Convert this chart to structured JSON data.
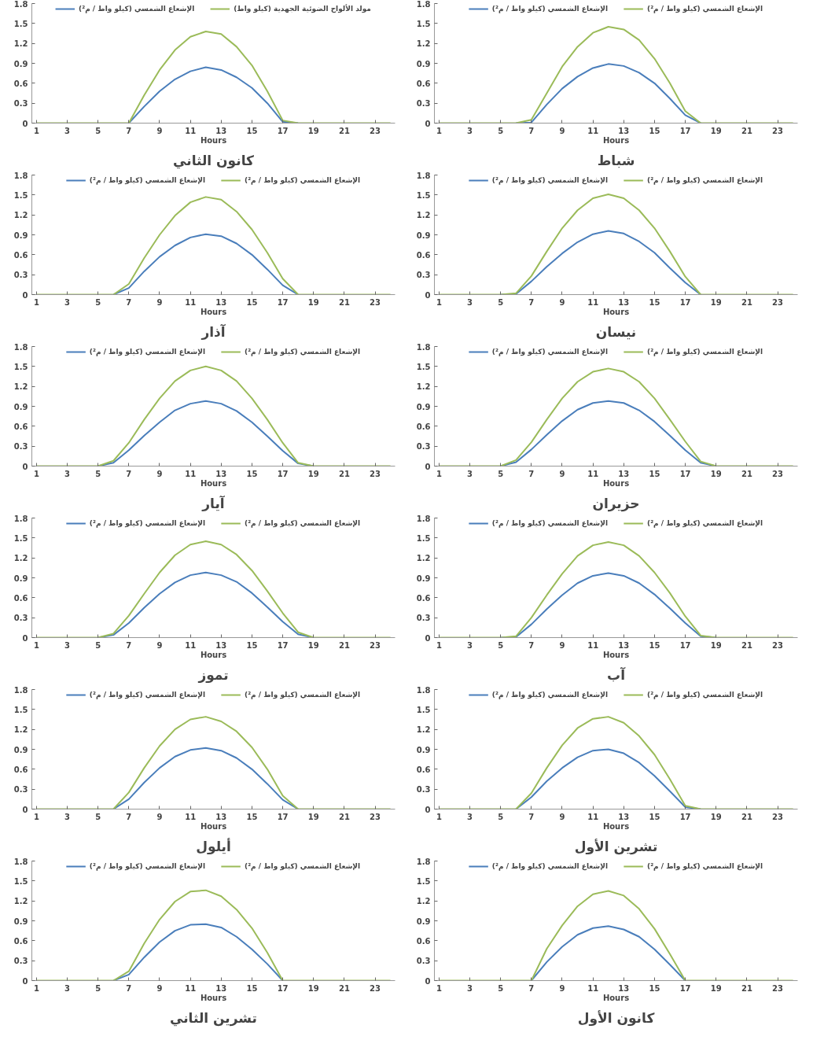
{
  "chart_data": [
    {
      "type": "line",
      "title": "كانون الثاني",
      "xlabel": "Hours",
      "x": [
        1,
        2,
        3,
        4,
        5,
        6,
        7,
        8,
        9,
        10,
        11,
        12,
        13,
        14,
        15,
        16,
        17,
        18,
        19,
        20,
        21,
        22,
        23,
        24
      ],
      "xlim": [
        0.7,
        24.3
      ],
      "xticks": [
        1,
        3,
        5,
        7,
        9,
        11,
        13,
        15,
        17,
        19,
        21,
        23
      ],
      "ylim": [
        0,
        1.8
      ],
      "yticks": [
        0,
        0.3,
        0.6,
        0.9,
        1.2,
        1.5,
        1.8
      ],
      "grid": false,
      "legend": "top",
      "series": [
        {
          "name": "الإشعاع الشمسي (كيلو واط / م²)",
          "color": "#4a7ebb",
          "values": [
            null,
            null,
            null,
            null,
            null,
            null,
            0,
            0.25,
            0.48,
            0.66,
            0.78,
            0.84,
            0.8,
            0.69,
            0.53,
            0.3,
            0.02,
            0,
            null,
            null,
            null,
            null,
            null,
            null
          ]
        },
        {
          "name": "مولد الألواح الضوئية الجهدية (كيلو واط)",
          "color": "#9bbb59",
          "values": [
            0,
            0,
            0,
            0,
            0,
            0,
            0,
            0.42,
            0.8,
            1.1,
            1.3,
            1.38,
            1.34,
            1.15,
            0.87,
            0.48,
            0.04,
            0,
            0,
            0,
            0,
            0,
            0,
            0
          ]
        }
      ]
    },
    {
      "type": "line",
      "title": "شباط",
      "xlabel": "Hours",
      "x": [
        1,
        2,
        3,
        4,
        5,
        6,
        7,
        8,
        9,
        10,
        11,
        12,
        13,
        14,
        15,
        16,
        17,
        18,
        19,
        20,
        21,
        22,
        23,
        24
      ],
      "xlim": [
        0.7,
        24.3
      ],
      "xticks": [
        1,
        3,
        5,
        7,
        9,
        11,
        13,
        15,
        17,
        19,
        21,
        23
      ],
      "ylim": [
        0,
        1.8
      ],
      "yticks": [
        0,
        0.3,
        0.6,
        0.9,
        1.2,
        1.5,
        1.8
      ],
      "grid": false,
      "legend": "top",
      "series": [
        {
          "name": "الإشعاع الشمسي (كيلو واط / م²)",
          "color": "#4a7ebb",
          "values": [
            null,
            null,
            null,
            null,
            null,
            0,
            0.01,
            0.28,
            0.52,
            0.7,
            0.83,
            0.89,
            0.86,
            0.76,
            0.6,
            0.37,
            0.12,
            0,
            null,
            null,
            null,
            null,
            null,
            null
          ]
        },
        {
          "name": "الإشعاع الشمسي (كيلو واط / م²)",
          "color": "#9bbb59",
          "values": [
            0,
            0,
            0,
            0,
            0,
            0,
            0.05,
            0.45,
            0.85,
            1.15,
            1.36,
            1.45,
            1.41,
            1.25,
            0.97,
            0.6,
            0.18,
            0,
            0,
            0,
            0,
            0,
            0,
            0
          ]
        }
      ]
    },
    {
      "type": "line",
      "title": "آذار",
      "xlabel": "Hours",
      "x": [
        1,
        2,
        3,
        4,
        5,
        6,
        7,
        8,
        9,
        10,
        11,
        12,
        13,
        14,
        15,
        16,
        17,
        18,
        19,
        20,
        21,
        22,
        23,
        24
      ],
      "xlim": [
        0.7,
        24.3
      ],
      "xticks": [
        1,
        3,
        5,
        7,
        9,
        11,
        13,
        15,
        17,
        19,
        21,
        23
      ],
      "ylim": [
        0,
        1.8
      ],
      "yticks": [
        0,
        0.3,
        0.6,
        0.9,
        1.2,
        1.5,
        1.8
      ],
      "grid": false,
      "legend": "top",
      "series": [
        {
          "name": "الإشعاع الشمسي (كيلو واط / م²)",
          "color": "#4a7ebb",
          "values": [
            null,
            null,
            null,
            null,
            null,
            0,
            0.1,
            0.35,
            0.57,
            0.74,
            0.86,
            0.91,
            0.88,
            0.77,
            0.6,
            0.38,
            0.14,
            0,
            null,
            null,
            null,
            null,
            null,
            null
          ]
        },
        {
          "name": "الإشعاع الشمسي (كيلو واط / م²)",
          "color": "#9bbb59",
          "values": [
            0,
            0,
            0,
            0,
            0,
            0,
            0.16,
            0.55,
            0.9,
            1.19,
            1.39,
            1.47,
            1.43,
            1.25,
            0.98,
            0.63,
            0.24,
            0,
            0,
            0,
            0,
            0,
            0,
            0
          ]
        }
      ]
    },
    {
      "type": "line",
      "title": "نيسان",
      "xlabel": "Hours",
      "x": [
        1,
        2,
        3,
        4,
        5,
        6,
        7,
        8,
        9,
        10,
        11,
        12,
        13,
        14,
        15,
        16,
        17,
        18,
        19,
        20,
        21,
        22,
        23,
        24
      ],
      "xlim": [
        0.7,
        24.3
      ],
      "xticks": [
        1,
        3,
        5,
        7,
        9,
        11,
        13,
        15,
        17,
        19,
        21,
        23
      ],
      "ylim": [
        0,
        1.8
      ],
      "yticks": [
        0,
        0.3,
        0.6,
        0.9,
        1.2,
        1.5,
        1.8
      ],
      "grid": false,
      "legend": "top",
      "series": [
        {
          "name": "الإشعاع الشمسي (كيلو واط / م²)",
          "color": "#4a7ebb",
          "values": [
            null,
            null,
            null,
            null,
            0,
            0.01,
            0.2,
            0.42,
            0.62,
            0.79,
            0.91,
            0.96,
            0.92,
            0.8,
            0.63,
            0.4,
            0.18,
            0,
            null,
            null,
            null,
            null,
            null,
            null
          ]
        },
        {
          "name": "الإشعاع الشمسي (كيلو واط / م²)",
          "color": "#9bbb59",
          "values": [
            0,
            0,
            0,
            0,
            0,
            0.02,
            0.28,
            0.65,
            1.0,
            1.27,
            1.45,
            1.51,
            1.45,
            1.27,
            1.0,
            0.65,
            0.27,
            0,
            0,
            0,
            0,
            0,
            0,
            0
          ]
        }
      ]
    },
    {
      "type": "line",
      "title": "آيار",
      "xlabel": "Hours",
      "x": [
        1,
        2,
        3,
        4,
        5,
        6,
        7,
        8,
        9,
        10,
        11,
        12,
        13,
        14,
        15,
        16,
        17,
        18,
        19,
        20,
        21,
        22,
        23,
        24
      ],
      "xlim": [
        0.7,
        24.3
      ],
      "xticks": [
        1,
        3,
        5,
        7,
        9,
        11,
        13,
        15,
        17,
        19,
        21,
        23
      ],
      "ylim": [
        0,
        1.8
      ],
      "yticks": [
        0,
        0.3,
        0.6,
        0.9,
        1.2,
        1.5,
        1.8
      ],
      "grid": false,
      "legend": "top",
      "series": [
        {
          "name": "الإشعاع الشمسي (كيلو واط / م²)",
          "color": "#4a7ebb",
          "values": [
            null,
            null,
            null,
            null,
            0,
            0.05,
            0.24,
            0.46,
            0.66,
            0.84,
            0.94,
            0.98,
            0.94,
            0.83,
            0.66,
            0.45,
            0.23,
            0.04,
            0,
            null,
            null,
            null,
            null,
            null
          ]
        },
        {
          "name": "الإشعاع الشمسي (كيلو واط / م²)",
          "color": "#9bbb59",
          "values": [
            0,
            0,
            0,
            0,
            0,
            0.08,
            0.35,
            0.7,
            1.02,
            1.28,
            1.44,
            1.5,
            1.44,
            1.28,
            1.02,
            0.7,
            0.35,
            0.05,
            0,
            0,
            0,
            0,
            0,
            0
          ]
        }
      ]
    },
    {
      "type": "line",
      "title": "حزيران",
      "xlabel": "Hours",
      "x": [
        1,
        2,
        3,
        4,
        5,
        6,
        7,
        8,
        9,
        10,
        11,
        12,
        13,
        14,
        15,
        16,
        17,
        18,
        19,
        20,
        21,
        22,
        23,
        24
      ],
      "xlim": [
        0.7,
        24.3
      ],
      "xticks": [
        1,
        3,
        5,
        7,
        9,
        11,
        13,
        15,
        17,
        19,
        21,
        23
      ],
      "ylim": [
        0,
        1.8
      ],
      "yticks": [
        0,
        0.3,
        0.6,
        0.9,
        1.2,
        1.5,
        1.8
      ],
      "grid": false,
      "legend": "top",
      "series": [
        {
          "name": "الإشعاع الشمسي (كيلو واط / م²)",
          "color": "#4a7ebb",
          "values": [
            null,
            null,
            null,
            null,
            0,
            0.06,
            0.25,
            0.47,
            0.68,
            0.85,
            0.95,
            0.98,
            0.95,
            0.84,
            0.67,
            0.46,
            0.24,
            0.05,
            0,
            null,
            null,
            null,
            null,
            null
          ]
        },
        {
          "name": "الإشعاع الشمسي (كيلو واط / م²)",
          "color": "#9bbb59",
          "values": [
            0,
            0,
            0,
            0,
            0,
            0.09,
            0.36,
            0.7,
            1.02,
            1.27,
            1.42,
            1.47,
            1.42,
            1.27,
            1.02,
            0.7,
            0.37,
            0.07,
            0,
            0,
            0,
            0,
            0,
            0
          ]
        }
      ]
    },
    {
      "type": "line",
      "title": "تموز",
      "xlabel": "Hours",
      "x": [
        1,
        2,
        3,
        4,
        5,
        6,
        7,
        8,
        9,
        10,
        11,
        12,
        13,
        14,
        15,
        16,
        17,
        18,
        19,
        20,
        21,
        22,
        23,
        24
      ],
      "xlim": [
        0.7,
        24.3
      ],
      "xticks": [
        1,
        3,
        5,
        7,
        9,
        11,
        13,
        15,
        17,
        19,
        21,
        23
      ],
      "ylim": [
        0,
        1.8
      ],
      "yticks": [
        0,
        0.3,
        0.6,
        0.9,
        1.2,
        1.5,
        1.8
      ],
      "grid": false,
      "legend": "top",
      "series": [
        {
          "name": "الإشعاع الشمسي (كيلو واط / م²)",
          "color": "#4a7ebb",
          "values": [
            null,
            null,
            null,
            null,
            0,
            0.04,
            0.22,
            0.45,
            0.66,
            0.83,
            0.94,
            0.98,
            0.94,
            0.84,
            0.67,
            0.46,
            0.24,
            0.05,
            0,
            null,
            null,
            null,
            null,
            null
          ]
        },
        {
          "name": "الإشعاع الشمسي (كيلو واط / م²)",
          "color": "#9bbb59",
          "values": [
            0,
            0,
            0,
            0,
            0,
            0.06,
            0.33,
            0.66,
            0.98,
            1.24,
            1.4,
            1.45,
            1.4,
            1.25,
            1.01,
            0.7,
            0.37,
            0.08,
            0,
            0,
            0,
            0,
            0,
            0
          ]
        }
      ]
    },
    {
      "type": "line",
      "title": "آب",
      "xlabel": "Hours",
      "x": [
        1,
        2,
        3,
        4,
        5,
        6,
        7,
        8,
        9,
        10,
        11,
        12,
        13,
        14,
        15,
        16,
        17,
        18,
        19,
        20,
        21,
        22,
        23,
        24
      ],
      "xlim": [
        0.7,
        24.3
      ],
      "xticks": [
        1,
        3,
        5,
        7,
        9,
        11,
        13,
        15,
        17,
        19,
        21,
        23
      ],
      "ylim": [
        0,
        1.8
      ],
      "yticks": [
        0,
        0.3,
        0.6,
        0.9,
        1.2,
        1.5,
        1.8
      ],
      "grid": false,
      "legend": "top",
      "series": [
        {
          "name": "الإشعاع الشمسي (كيلو واط / م²)",
          "color": "#4a7ebb",
          "values": [
            null,
            null,
            null,
            null,
            0,
            0.01,
            0.2,
            0.43,
            0.64,
            0.82,
            0.93,
            0.97,
            0.93,
            0.82,
            0.65,
            0.44,
            0.22,
            0.02,
            0,
            null,
            null,
            null,
            null,
            null
          ]
        },
        {
          "name": "الإشعاع الشمسي (كيلو واط / م²)",
          "color": "#9bbb59",
          "values": [
            0,
            0,
            0,
            0,
            0,
            0.02,
            0.3,
            0.64,
            0.96,
            1.23,
            1.39,
            1.44,
            1.39,
            1.23,
            0.98,
            0.67,
            0.32,
            0.03,
            0,
            0,
            0,
            0,
            0,
            0
          ]
        }
      ]
    },
    {
      "type": "line",
      "title": "أيلول",
      "xlabel": "Hours",
      "x": [
        1,
        2,
        3,
        4,
        5,
        6,
        7,
        8,
        9,
        10,
        11,
        12,
        13,
        14,
        15,
        16,
        17,
        18,
        19,
        20,
        21,
        22,
        23,
        24
      ],
      "xlim": [
        0.7,
        24.3
      ],
      "xticks": [
        1,
        3,
        5,
        7,
        9,
        11,
        13,
        15,
        17,
        19,
        21,
        23
      ],
      "ylim": [
        0,
        1.8
      ],
      "yticks": [
        0,
        0.3,
        0.6,
        0.9,
        1.2,
        1.5,
        1.8
      ],
      "grid": false,
      "legend": "top",
      "series": [
        {
          "name": "الإشعاع الشمسي (كيلو واط / م²)",
          "color": "#4a7ebb",
          "values": [
            null,
            null,
            null,
            null,
            null,
            0,
            0.15,
            0.4,
            0.62,
            0.79,
            0.89,
            0.92,
            0.88,
            0.77,
            0.6,
            0.38,
            0.14,
            0,
            null,
            null,
            null,
            null,
            null,
            null
          ]
        },
        {
          "name": "الإشعاع الشمسي (كيلو واط / م²)",
          "color": "#9bbb59",
          "values": [
            0,
            0,
            0,
            0,
            0,
            0,
            0.25,
            0.62,
            0.95,
            1.2,
            1.35,
            1.39,
            1.32,
            1.17,
            0.93,
            0.6,
            0.2,
            0,
            0,
            0,
            0,
            0,
            0,
            0
          ]
        }
      ]
    },
    {
      "type": "line",
      "title": "تشرين الأول",
      "xlabel": "Hours",
      "x": [
        1,
        2,
        3,
        4,
        5,
        6,
        7,
        8,
        9,
        10,
        11,
        12,
        13,
        14,
        15,
        16,
        17,
        18,
        19,
        20,
        21,
        22,
        23,
        24
      ],
      "xlim": [
        0.7,
        24.3
      ],
      "xticks": [
        1,
        3,
        5,
        7,
        9,
        11,
        13,
        15,
        17,
        19,
        21,
        23
      ],
      "ylim": [
        0,
        1.8
      ],
      "yticks": [
        0,
        0.3,
        0.6,
        0.9,
        1.2,
        1.5,
        1.8
      ],
      "grid": false,
      "legend": "top",
      "series": [
        {
          "name": "الإشعاع الشمسي (كيلو واط / م²)",
          "color": "#4a7ebb",
          "values": [
            null,
            null,
            null,
            null,
            null,
            0,
            0.18,
            0.42,
            0.62,
            0.78,
            0.88,
            0.9,
            0.84,
            0.7,
            0.5,
            0.27,
            0.03,
            0,
            null,
            null,
            null,
            null,
            null,
            null
          ]
        },
        {
          "name": "الإشعاع الشمسي (كيلو واط / م²)",
          "color": "#9bbb59",
          "values": [
            0,
            0,
            0,
            0,
            0,
            0,
            0.24,
            0.62,
            0.96,
            1.22,
            1.36,
            1.39,
            1.3,
            1.1,
            0.82,
            0.45,
            0.05,
            0,
            0,
            0,
            0,
            0,
            0,
            0
          ]
        }
      ]
    },
    {
      "type": "line",
      "title": "تشرين الثاني",
      "xlabel": "Hours",
      "x": [
        1,
        2,
        3,
        4,
        5,
        6,
        7,
        8,
        9,
        10,
        11,
        12,
        13,
        14,
        15,
        16,
        17,
        18,
        19,
        20,
        21,
        22,
        23,
        24
      ],
      "xlim": [
        0.7,
        24.3
      ],
      "xticks": [
        1,
        3,
        5,
        7,
        9,
        11,
        13,
        15,
        17,
        19,
        21,
        23
      ],
      "ylim": [
        0,
        1.8
      ],
      "yticks": [
        0,
        0.3,
        0.6,
        0.9,
        1.2,
        1.5,
        1.8
      ],
      "grid": false,
      "legend": "top",
      "series": [
        {
          "name": "الإشعاع الشمسي (كيلو واط / م²)",
          "color": "#4a7ebb",
          "values": [
            null,
            null,
            null,
            null,
            null,
            0,
            0.09,
            0.35,
            0.58,
            0.75,
            0.84,
            0.85,
            0.8,
            0.66,
            0.47,
            0.25,
            0,
            null,
            null,
            null,
            null,
            null,
            null,
            null
          ]
        },
        {
          "name": "الإشعاع الشمسي (كيلو واط / م²)",
          "color": "#9bbb59",
          "values": [
            0,
            0,
            0,
            0,
            0,
            0,
            0.14,
            0.56,
            0.92,
            1.19,
            1.34,
            1.36,
            1.27,
            1.07,
            0.79,
            0.42,
            0,
            0,
            0,
            0,
            0,
            0,
            0,
            0
          ]
        }
      ]
    },
    {
      "type": "line",
      "title": "كانون الأول",
      "xlabel": "Hours",
      "x": [
        1,
        2,
        3,
        4,
        5,
        6,
        7,
        8,
        9,
        10,
        11,
        12,
        13,
        14,
        15,
        16,
        17,
        18,
        19,
        20,
        21,
        22,
        23,
        24
      ],
      "xlim": [
        0.7,
        24.3
      ],
      "xticks": [
        1,
        3,
        5,
        7,
        9,
        11,
        13,
        15,
        17,
        19,
        21,
        23
      ],
      "ylim": [
        0,
        1.8
      ],
      "yticks": [
        0,
        0.3,
        0.6,
        0.9,
        1.2,
        1.5,
        1.8
      ],
      "grid": false,
      "legend": "top",
      "series": [
        {
          "name": "الإشعاع الشمسي (كيلو واط / م²)",
          "color": "#4a7ebb",
          "values": [
            null,
            null,
            null,
            null,
            null,
            null,
            0,
            0.28,
            0.51,
            0.69,
            0.79,
            0.82,
            0.77,
            0.66,
            0.47,
            0.24,
            0,
            null,
            null,
            null,
            null,
            null,
            null,
            null
          ]
        },
        {
          "name": "الإشعاع الشمسي (كيلو واط / م²)",
          "color": "#9bbb59",
          "values": [
            0,
            0,
            0,
            0,
            0,
            0,
            0,
            0.48,
            0.83,
            1.12,
            1.3,
            1.35,
            1.28,
            1.08,
            0.78,
            0.4,
            0,
            0,
            0,
            0,
            0,
            0,
            0,
            0
          ]
        }
      ]
    }
  ]
}
